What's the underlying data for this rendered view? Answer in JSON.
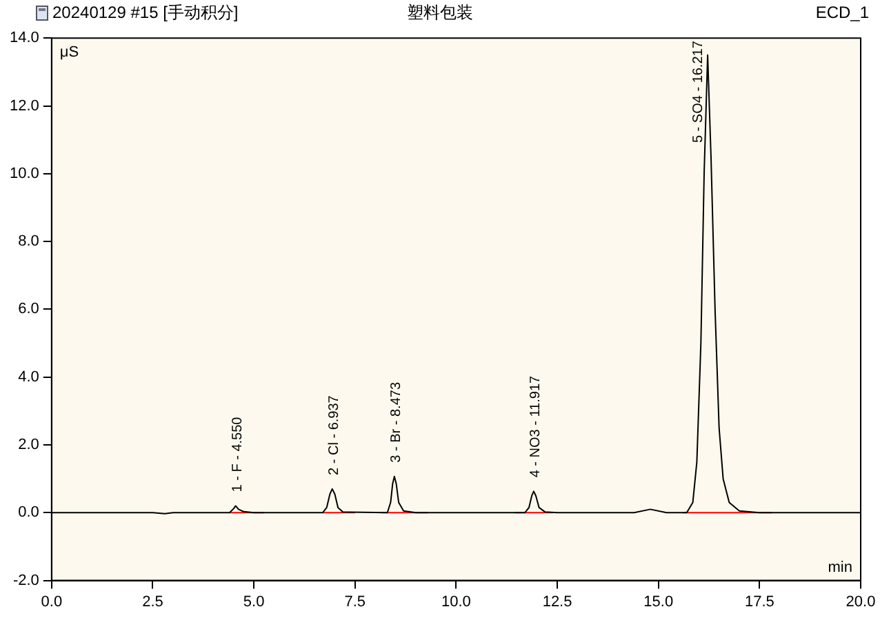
{
  "chart_data": {
    "type": "line",
    "title": "塑料包装",
    "ylabel": "μS",
    "xlabel": "min",
    "annotations": [
      "20240129 #15 [手动积分]",
      "ECD_1",
      {
        "text": "1 - F - 4.550",
        "x": 4.55,
        "y": 0.2
      },
      {
        "text": "2 - Cl - 6.937",
        "x": 6.937,
        "y": 0.7
      },
      {
        "text": "3 - Br - 8.473",
        "x": 8.473,
        "y": 1.07
      },
      {
        "text": "4 - NO3 - 11.917",
        "x": 11.917,
        "y": 0.63
      },
      {
        "text": "5 - SO4 - 16.217",
        "x": 16.217,
        "y": 13.5
      }
    ],
    "xlim": [
      0,
      20
    ],
    "ylim": [
      -2,
      14
    ],
    "xticks": [
      {
        "value": 0,
        "label": "0.0"
      },
      2.5,
      {
        "value": 5,
        "label": "5.0"
      },
      7.5,
      {
        "value": 10,
        "label": "10.0"
      },
      12.5,
      {
        "value": 15,
        "label": "15.0"
      },
      17.5,
      {
        "value": 20,
        "label": "20.0"
      }
    ],
    "yticks": [
      {
        "value": -2,
        "label": "-2.0"
      },
      {
        "value": 0,
        "label": "0.0"
      },
      {
        "value": 2,
        "label": "2.0"
      },
      {
        "value": 4,
        "label": "4.0"
      },
      {
        "value": 6,
        "label": "6.0"
      },
      {
        "value": 8,
        "label": "8.0"
      },
      {
        "value": 10,
        "label": "10.0"
      },
      {
        "value": 12,
        "label": "12.0"
      },
      {
        "value": 14,
        "label": "14.0"
      }
    ],
    "grid": false,
    "legend": false,
    "marker": "none",
    "line_style": "solid",
    "series": [
      {
        "type": "line",
        "color": "#000000",
        "x": [
          0,
          2.5,
          2.8,
          3.0,
          4.4,
          4.5,
          4.55,
          4.62,
          4.75,
          5.0,
          6.7,
          6.8,
          6.88,
          6.937,
          7.0,
          7.08,
          7.2,
          8.3,
          8.38,
          8.43,
          8.473,
          8.52,
          8.58,
          8.7,
          9.0,
          11.7,
          11.8,
          11.87,
          11.917,
          11.97,
          12.05,
          12.2,
          12.5,
          14.4,
          14.8,
          15.2,
          15.7,
          15.85,
          15.95,
          16.05,
          16.13,
          16.217,
          16.3,
          16.4,
          16.5,
          16.6,
          16.75,
          17.0,
          17.5,
          20
        ],
        "values": [
          0,
          0,
          -0.03,
          0,
          0,
          0.12,
          0.2,
          0.1,
          0.03,
          0,
          0,
          0.15,
          0.55,
          0.7,
          0.55,
          0.15,
          0.02,
          0,
          0.3,
          0.85,
          1.07,
          0.85,
          0.3,
          0.05,
          0,
          0,
          0.15,
          0.5,
          0.63,
          0.5,
          0.15,
          0.02,
          0,
          0,
          0.1,
          0,
          0,
          0.3,
          1.5,
          5,
          10,
          13.5,
          10.5,
          6,
          2.5,
          1,
          0.3,
          0.05,
          0,
          0
        ]
      },
      {
        "type": "line",
        "color": "#ff0000",
        "x": [
          4.4,
          5.25
        ],
        "values": [
          0,
          0
        ]
      },
      {
        "type": "line",
        "color": "#ff0000",
        "x": [
          6.7,
          7.5
        ],
        "values": [
          0,
          0
        ]
      },
      {
        "type": "line",
        "color": "#ff0000",
        "x": [
          8.15,
          9.3
        ],
        "values": [
          0,
          0
        ]
      },
      {
        "type": "line",
        "color": "#ff0000",
        "x": [
          11.45,
          12.4
        ],
        "values": [
          0,
          0
        ]
      },
      {
        "type": "line",
        "color": "#ff0000",
        "x": [
          15.6,
          17.8
        ],
        "values": [
          0,
          0
        ]
      }
    ]
  }
}
